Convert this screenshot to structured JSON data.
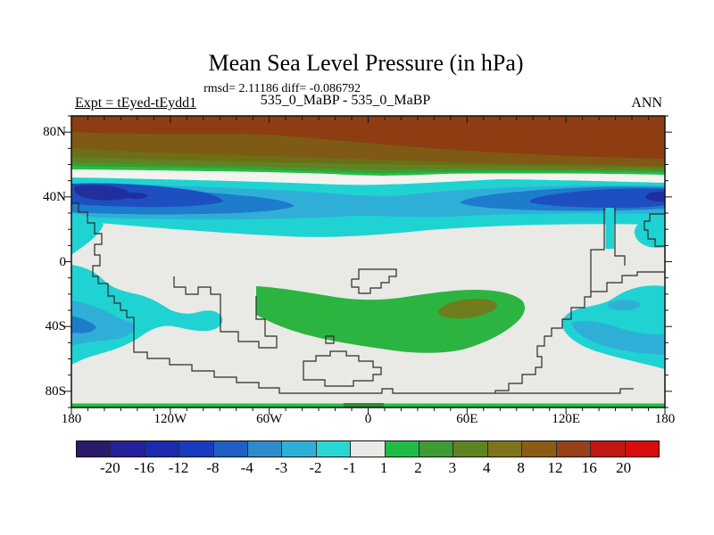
{
  "header": {
    "title": "Mean Sea Level Pressure (in hPa)",
    "stats_line": "rmsd= 2.11186 diff= -0.086792",
    "comparison_line": "535_0_MaBP - 535_0_MaBP",
    "experiment_label": "Expt = tEyed-tEydd1",
    "season_label": "ANN"
  },
  "map": {
    "lat_tick_labels": [
      "80N",
      "40N",
      "0",
      "40S",
      "80S"
    ],
    "lon_tick_labels": [
      "180",
      "120W",
      "60W",
      "0",
      "60E",
      "120E",
      "180"
    ]
  },
  "colorbar": {
    "boundary_labels": [
      "-20",
      "-16",
      "-12",
      "-8",
      "-4",
      "-3",
      "-2",
      "-1",
      "1",
      "2",
      "3",
      "4",
      "8",
      "12",
      "16",
      "20"
    ],
    "segment_colors": [
      "#2B1A6B",
      "#25219B",
      "#1B2BB0",
      "#1A3BC0",
      "#1E5FC8",
      "#2E8CCC",
      "#2FAFD8",
      "#28D7D2",
      "#E9E9E6",
      "#21BC45",
      "#3F9B33",
      "#5F8222",
      "#7D741C",
      "#8C5C17",
      "#96411A",
      "#C41613",
      "#D90D0B"
    ]
  },
  "palette": {
    "bg": "#E9E9E6",
    "white_band": "#F3F3EF",
    "band_12_16": "#8E3D12",
    "band_8_12": "#85591578",
    "band_8_12_solid": "#7E5A14",
    "band_4_8": "#6D6F17",
    "band_3_4": "#5F8222",
    "band_2_3": "#3F9B33",
    "band_1_2": "#24BE47",
    "cyan": "#1FD3D2",
    "lblue": "#2FAFD8",
    "blue": "#1E7CCC",
    "dblue": "#1D4FC0",
    "navy": "#202E9E",
    "green_blob": "#2CB441",
    "olive_core": "#6F7D1F",
    "strip_green": "#24BE47",
    "strip_dark": "#2F8A33"
  },
  "chart_data": {
    "type": "filled_contour_map",
    "title": "Mean Sea Level Pressure (in hPa)",
    "units": "hPa",
    "stats": {
      "rmsd": 2.11186,
      "diff": -0.086792
    },
    "comparison": "535_0_MaBP - 535_0_MaBP",
    "experiment": "Expt = tEyed-tEydd1",
    "season": "ANN",
    "contour_levels": [
      -20,
      -16,
      -12,
      -8,
      -4,
      -3,
      -2,
      -1,
      1,
      2,
      3,
      4,
      8,
      12,
      16,
      20
    ],
    "lon_range_deg": [
      -180,
      180
    ],
    "lat_range_deg": [
      -90,
      90
    ],
    "legend_position": "bottom",
    "grid": false,
    "features": [
      {
        "region": "60N-90N, all longitudes",
        "value_hpa": "+4 to +16, polar positive band (brown)"
      },
      {
        "region": "55-60N, all longitudes",
        "value_hpa": "+1 to +4, narrow green transition band"
      },
      {
        "region": "35-55N, all longitudes",
        "value_hpa": "-1 to -12, negative belt; minima near 40N at 150W and 100E-170E"
      },
      {
        "region": "tropics 25N-20S",
        "value_hpa": "-1 to +1, near zero (gray)"
      },
      {
        "region": "20S-50S, 40W-90E",
        "value_hpa": "+1 to +4, positive anomaly with max near 40S 55E"
      },
      {
        "region": "20S-55S near 180W-150W and 120E-180E",
        "value_hpa": "-1 to -4, negative patches"
      },
      {
        "region": "~88S coastal strip",
        "value_hpa": "+1 to +3, thin green strip along bottom edge"
      }
    ]
  }
}
